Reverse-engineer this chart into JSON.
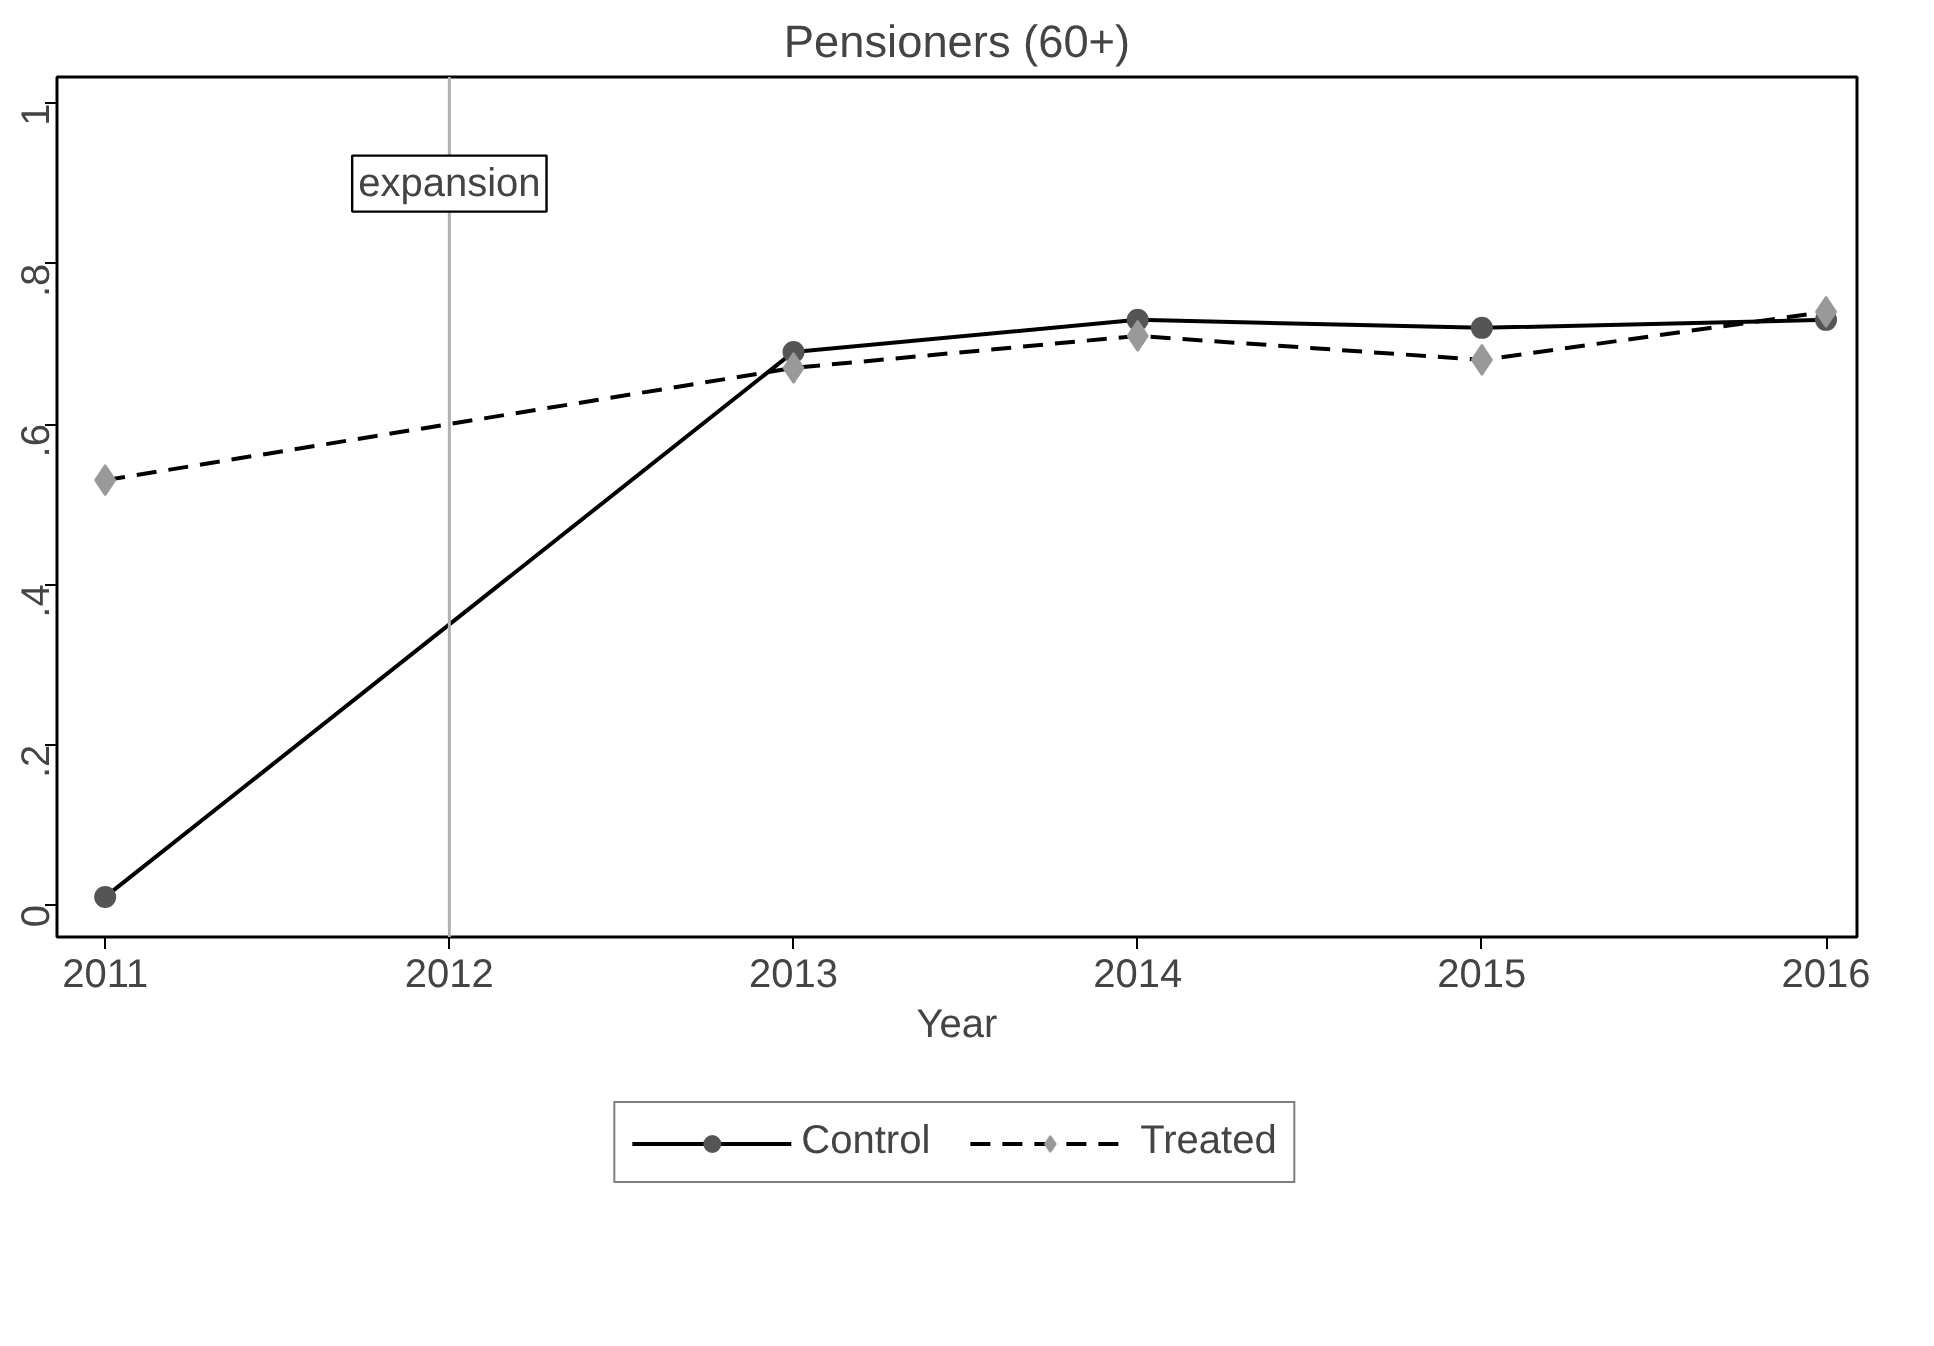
{
  "chart_data": {
    "type": "line",
    "title": "Pensioners (60+)",
    "xlabel": "Year",
    "x": [
      2011,
      2012,
      2013,
      2014,
      2015,
      2016
    ],
    "series": [
      {
        "name": "Control",
        "color": "#555555",
        "marker": "circle",
        "line_style": "solid",
        "values": [
          0.01,
          null,
          0.69,
          0.73,
          0.72,
          0.73
        ]
      },
      {
        "name": "Treated",
        "color": "#999999",
        "marker": "diamond",
        "line_style": "dashed",
        "values": [
          0.53,
          null,
          0.67,
          0.71,
          0.68,
          0.74
        ]
      }
    ],
    "xlim": [
      2010.86,
      2016.09
    ],
    "xticks": [
      2011,
      2012,
      2013,
      2014,
      2015,
      2016
    ],
    "ylim": [
      -0.04,
      1.033
    ],
    "yticks": [
      0,
      {
        "value": 0.2,
        "label": ".2"
      },
      {
        "value": 0.4,
        "label": ".4"
      },
      {
        "value": 0.6,
        "label": ".6"
      },
      {
        "value": 0.8,
        "label": ".8"
      },
      1
    ],
    "ref_lines": [
      {
        "axis": "x",
        "value": 2012,
        "color": "#b0b0b0"
      }
    ],
    "annotations": [
      {
        "text": "expansion",
        "x": 2012,
        "y": 0.9
      }
    ],
    "grid": false,
    "legend": "bottom"
  }
}
